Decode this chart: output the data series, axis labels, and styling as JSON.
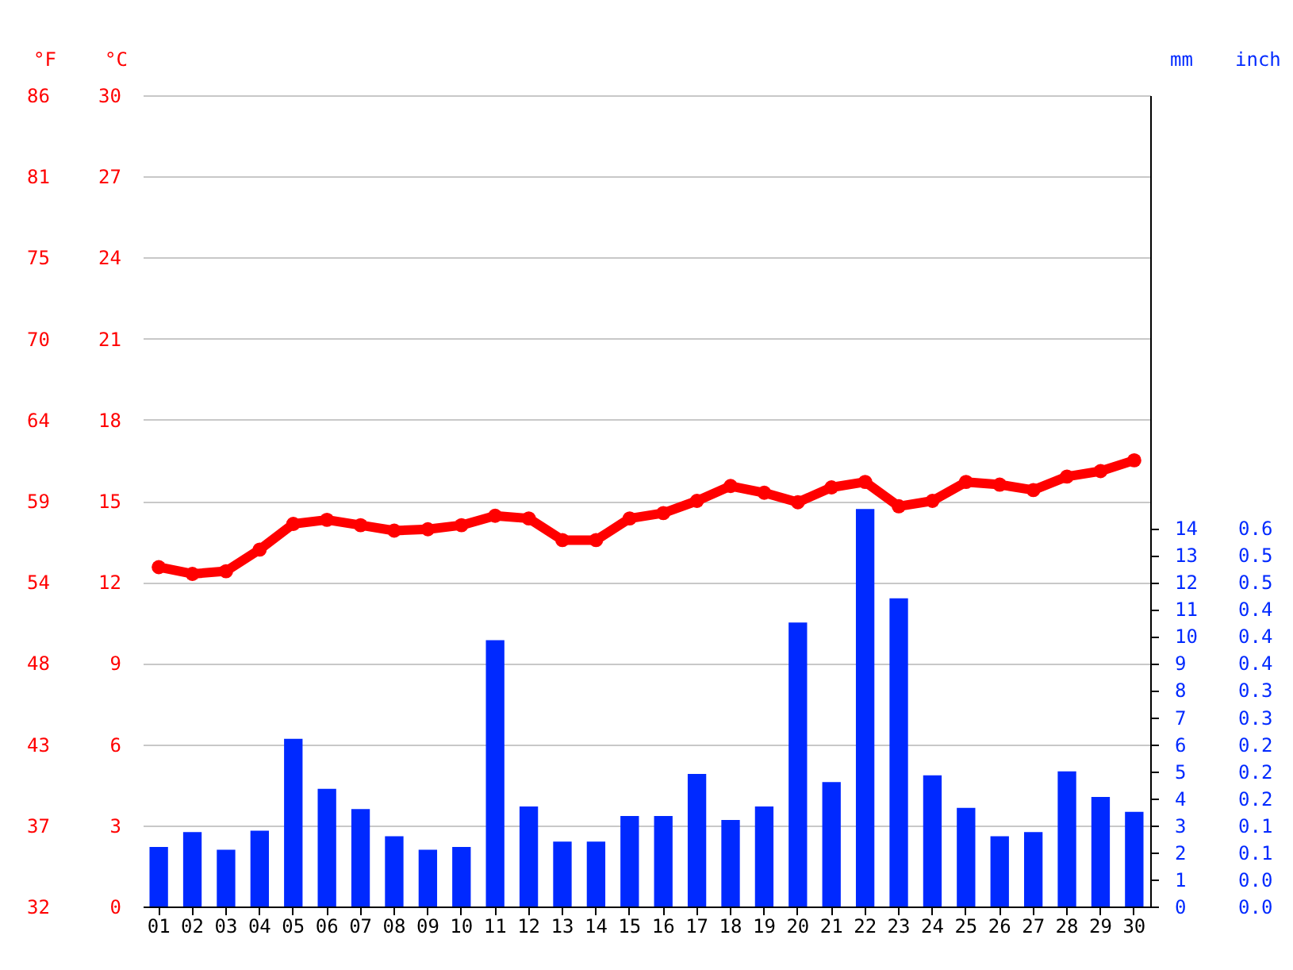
{
  "chart_data": {
    "type": "bar",
    "categories": [
      "01",
      "02",
      "03",
      "04",
      "05",
      "06",
      "07",
      "08",
      "09",
      "10",
      "11",
      "12",
      "13",
      "14",
      "15",
      "16",
      "17",
      "18",
      "19",
      "20",
      "21",
      "22",
      "23",
      "24",
      "25",
      "26",
      "27",
      "28",
      "29",
      "30"
    ],
    "series": [
      {
        "axis": "y2",
        "color": "#0029ff",
        "values": [
          2.2,
          2.75,
          2.1,
          2.8,
          6.2,
          4.35,
          3.6,
          2.6,
          2.1,
          2.2,
          9.85,
          3.7,
          2.4,
          2.4,
          3.35,
          3.35,
          4.9,
          3.2,
          3.7,
          10.5,
          4.6,
          14.7,
          11.4,
          4.85,
          3.65,
          2.6,
          2.75,
          5.0,
          4.05,
          3.5
        ]
      },
      {
        "type": "line",
        "axis": "y",
        "color": "#ff0000",
        "values": [
          12.55,
          12.3,
          12.4,
          13.2,
          14.15,
          14.3,
          14.1,
          13.9,
          13.95,
          14.1,
          14.45,
          14.35,
          13.55,
          13.55,
          14.35,
          14.55,
          15.0,
          15.55,
          15.3,
          14.95,
          15.5,
          15.7,
          14.8,
          15.0,
          15.7,
          15.6,
          15.4,
          15.9,
          16.1,
          16.5
        ]
      }
    ],
    "ylabel": "°C",
    "ylim": [
      0,
      30
    ],
    "yticks": [
      0,
      3,
      6,
      9,
      12,
      15,
      18,
      21,
      24,
      27,
      30
    ],
    "y2label": "mm",
    "y2lim": [
      0,
      30
    ],
    "y2ticks": [
      0,
      1,
      2,
      3,
      4,
      5,
      6,
      7,
      8,
      9,
      10,
      11,
      12,
      13,
      14
    ],
    "y3label": "°F",
    "y3lim": [
      32,
      86
    ],
    "y3ticks": [
      32,
      {
        "value": 37.4,
        "label": "37"
      },
      {
        "value": 42.8,
        "label": "43"
      },
      {
        "value": 48.2,
        "label": "48"
      },
      {
        "value": 53.6,
        "label": "54"
      },
      59,
      {
        "value": 64.4,
        "label": "64"
      },
      {
        "value": 69.8,
        "label": "70"
      },
      {
        "value": 75.2,
        "label": "75"
      },
      {
        "value": 80.6,
        "label": "81"
      },
      86
    ],
    "annotations": [
      "inch",
      "0.0",
      "0.0",
      "0.1",
      "0.1",
      "0.2",
      "0.2",
      "0.2",
      "0.3",
      "0.3",
      "0.4",
      "0.4",
      "0.4",
      "0.5",
      "0.5",
      "0.6"
    ],
    "grid": "y",
    "marker": "circle",
    "line_style": "solid"
  }
}
